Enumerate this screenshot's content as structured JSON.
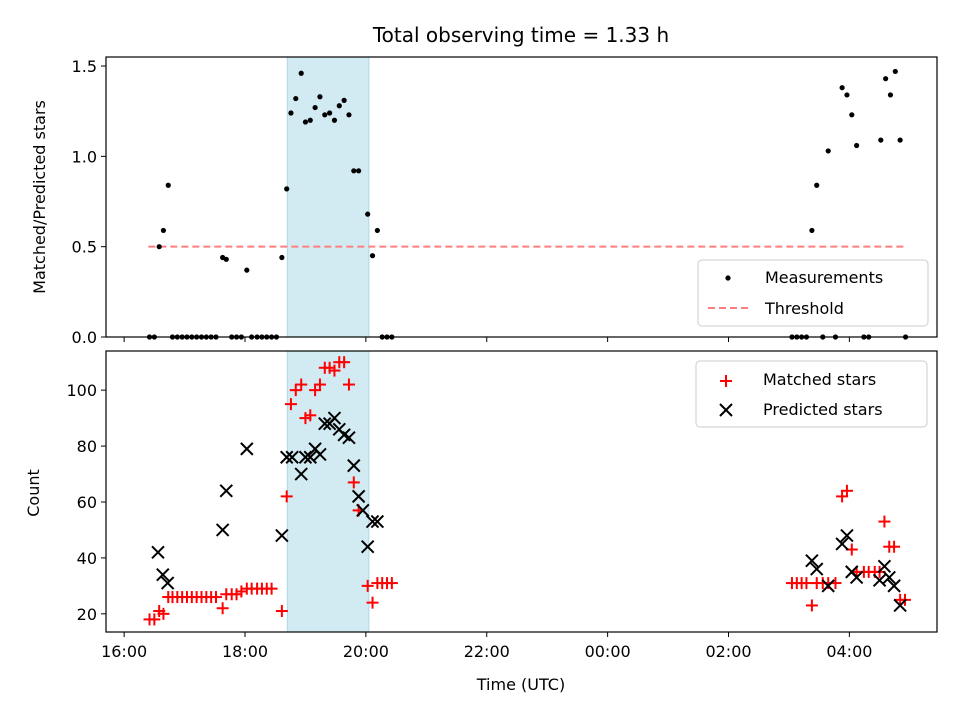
{
  "title": "Total observing time = 1.33 h",
  "colors": {
    "measurement": "#000000",
    "threshold": "#ff7f7f",
    "matched": "#ff0000",
    "predicted": "#000000",
    "band": "#add8e6"
  },
  "chart_data": [
    {
      "type": "scatter",
      "ylabel": "Matched/Predicted stars",
      "ylim": [
        0,
        1.55
      ],
      "yticks": [
        0.0,
        0.5,
        1.0,
        1.5
      ],
      "ytick_labels": [
        "0.0",
        "0.5",
        "1.0",
        "1.5"
      ],
      "xlim_hours": [
        15.7,
        29.45
      ],
      "shaded_span_hours": [
        18.7,
        20.05
      ],
      "threshold": {
        "name": "Threshold",
        "y": 0.5,
        "x_range_hours": [
          16.4,
          28.95
        ]
      },
      "legend": {
        "position": "lower right",
        "entries": [
          "Measurements",
          "Threshold"
        ]
      },
      "series": [
        {
          "name": "Measurements",
          "marker": "dot",
          "points": [
            [
              16.42,
              0
            ],
            [
              16.5,
              0
            ],
            [
              16.58,
              0.5
            ],
            [
              16.65,
              0.59
            ],
            [
              16.73,
              0.84
            ],
            [
              16.8,
              0
            ],
            [
              16.88,
              0
            ],
            [
              16.96,
              0
            ],
            [
              17.04,
              0
            ],
            [
              17.12,
              0
            ],
            [
              17.2,
              0
            ],
            [
              17.28,
              0
            ],
            [
              17.36,
              0
            ],
            [
              17.44,
              0
            ],
            [
              17.52,
              0
            ],
            [
              17.63,
              0.44
            ],
            [
              17.69,
              0.43
            ],
            [
              17.78,
              0
            ],
            [
              17.86,
              0
            ],
            [
              17.94,
              0
            ],
            [
              18.03,
              0.37
            ],
            [
              18.11,
              0
            ],
            [
              18.2,
              0
            ],
            [
              18.28,
              0
            ],
            [
              18.36,
              0
            ],
            [
              18.44,
              0
            ],
            [
              18.52,
              0
            ],
            [
              18.61,
              0.44
            ],
            [
              18.69,
              0.82
            ],
            [
              18.76,
              1.24
            ],
            [
              18.84,
              1.32
            ],
            [
              18.93,
              1.46
            ],
            [
              19.0,
              1.19
            ],
            [
              19.08,
              1.2
            ],
            [
              19.16,
              1.27
            ],
            [
              19.24,
              1.33
            ],
            [
              19.32,
              1.23
            ],
            [
              19.4,
              1.24
            ],
            [
              19.48,
              1.2
            ],
            [
              19.56,
              1.28
            ],
            [
              19.64,
              1.31
            ],
            [
              19.72,
              1.23
            ],
            [
              19.8,
              0.92
            ],
            [
              19.88,
              0.92
            ],
            [
              20.03,
              0.68
            ],
            [
              20.11,
              0.45
            ],
            [
              20.19,
              0.59
            ],
            [
              20.27,
              0
            ],
            [
              20.35,
              0
            ],
            [
              20.43,
              0
            ],
            [
              27.05,
              0
            ],
            [
              27.13,
              0
            ],
            [
              27.21,
              0
            ],
            [
              27.29,
              0
            ],
            [
              27.38,
              0.59
            ],
            [
              27.46,
              0.84
            ],
            [
              27.56,
              0
            ],
            [
              27.65,
              1.03
            ],
            [
              27.77,
              0
            ],
            [
              27.88,
              1.38
            ],
            [
              27.96,
              1.34
            ],
            [
              28.04,
              1.23
            ],
            [
              28.12,
              1.06
            ],
            [
              28.24,
              0
            ],
            [
              28.32,
              0
            ],
            [
              28.52,
              1.09
            ],
            [
              28.6,
              1.43
            ],
            [
              28.68,
              1.34
            ],
            [
              28.76,
              1.47
            ],
            [
              28.84,
              1.09
            ],
            [
              28.93,
              0
            ]
          ]
        }
      ]
    },
    {
      "type": "scatter",
      "xlabel": "Time (UTC)",
      "ylabel": "Count",
      "ylim": [
        13.5,
        114
      ],
      "yticks": [
        20,
        40,
        60,
        80,
        100
      ],
      "ytick_labels": [
        "20",
        "40",
        "60",
        "80",
        "100"
      ],
      "xlim_hours": [
        15.7,
        29.45
      ],
      "xticks_hours": [
        16,
        18,
        20,
        22,
        24,
        26,
        28
      ],
      "xtick_labels": [
        "16:00",
        "18:00",
        "20:00",
        "22:00",
        "00:00",
        "02:00",
        "04:00"
      ],
      "shaded_span_hours": [
        18.7,
        20.05
      ],
      "legend": {
        "position": "upper right",
        "entries": [
          "Matched stars",
          "Predicted stars"
        ]
      },
      "series": [
        {
          "name": "Matched stars",
          "marker": "plus",
          "points": [
            [
              16.42,
              18
            ],
            [
              16.5,
              18
            ],
            [
              16.58,
              21
            ],
            [
              16.65,
              20
            ],
            [
              16.73,
              26
            ],
            [
              16.8,
              26
            ],
            [
              16.88,
              26
            ],
            [
              16.96,
              26
            ],
            [
              17.04,
              26
            ],
            [
              17.12,
              26
            ],
            [
              17.2,
              26
            ],
            [
              17.28,
              26
            ],
            [
              17.36,
              26
            ],
            [
              17.44,
              26
            ],
            [
              17.52,
              26
            ],
            [
              17.63,
              22
            ],
            [
              17.69,
              27
            ],
            [
              17.78,
              27
            ],
            [
              17.86,
              27
            ],
            [
              17.94,
              28
            ],
            [
              18.03,
              29
            ],
            [
              18.11,
              29
            ],
            [
              18.2,
              29
            ],
            [
              18.28,
              29
            ],
            [
              18.36,
              29
            ],
            [
              18.44,
              29
            ],
            [
              18.61,
              21
            ],
            [
              18.69,
              62
            ],
            [
              18.76,
              95
            ],
            [
              18.84,
              100
            ],
            [
              18.93,
              102
            ],
            [
              19.0,
              90
            ],
            [
              19.08,
              91
            ],
            [
              19.16,
              100
            ],
            [
              19.24,
              102
            ],
            [
              19.32,
              108
            ],
            [
              19.4,
              108
            ],
            [
              19.48,
              107
            ],
            [
              19.56,
              110
            ],
            [
              19.64,
              110
            ],
            [
              19.72,
              102
            ],
            [
              19.8,
              67
            ],
            [
              19.88,
              57
            ],
            [
              20.03,
              30
            ],
            [
              20.11,
              24
            ],
            [
              20.19,
              31
            ],
            [
              20.27,
              31
            ],
            [
              20.35,
              31
            ],
            [
              20.43,
              31
            ],
            [
              27.05,
              31
            ],
            [
              27.13,
              31
            ],
            [
              27.21,
              31
            ],
            [
              27.29,
              31
            ],
            [
              27.38,
              23
            ],
            [
              27.46,
              31
            ],
            [
              27.56,
              31
            ],
            [
              27.65,
              31
            ],
            [
              27.77,
              31
            ],
            [
              27.88,
              62
            ],
            [
              27.96,
              64
            ],
            [
              28.04,
              43
            ],
            [
              28.12,
              35
            ],
            [
              28.24,
              35
            ],
            [
              28.32,
              35
            ],
            [
              28.42,
              35
            ],
            [
              28.5,
              35
            ],
            [
              28.58,
              53
            ],
            [
              28.66,
              44
            ],
            [
              28.74,
              44
            ],
            [
              28.84,
              25
            ],
            [
              28.92,
              25
            ]
          ]
        },
        {
          "name": "Predicted stars",
          "marker": "x",
          "points": [
            [
              16.56,
              42
            ],
            [
              16.64,
              34
            ],
            [
              16.72,
              31
            ],
            [
              17.63,
              50
            ],
            [
              17.69,
              64
            ],
            [
              18.03,
              79
            ],
            [
              18.61,
              48
            ],
            [
              18.69,
              76
            ],
            [
              18.78,
              76
            ],
            [
              18.93,
              70
            ],
            [
              19.0,
              76
            ],
            [
              19.08,
              76
            ],
            [
              19.16,
              79
            ],
            [
              19.24,
              77
            ],
            [
              19.32,
              88
            ],
            [
              19.4,
              88
            ],
            [
              19.48,
              90
            ],
            [
              19.56,
              86
            ],
            [
              19.64,
              84
            ],
            [
              19.72,
              83
            ],
            [
              19.8,
              73
            ],
            [
              19.88,
              62
            ],
            [
              19.95,
              57
            ],
            [
              20.03,
              44
            ],
            [
              20.11,
              53
            ],
            [
              20.19,
              53
            ],
            [
              27.38,
              39
            ],
            [
              27.46,
              36
            ],
            [
              27.65,
              30
            ],
            [
              27.88,
              45
            ],
            [
              27.96,
              48
            ],
            [
              28.04,
              35
            ],
            [
              28.12,
              33
            ],
            [
              28.5,
              32
            ],
            [
              28.58,
              37
            ],
            [
              28.66,
              33
            ],
            [
              28.74,
              30
            ],
            [
              28.84,
              23
            ]
          ]
        }
      ]
    }
  ]
}
